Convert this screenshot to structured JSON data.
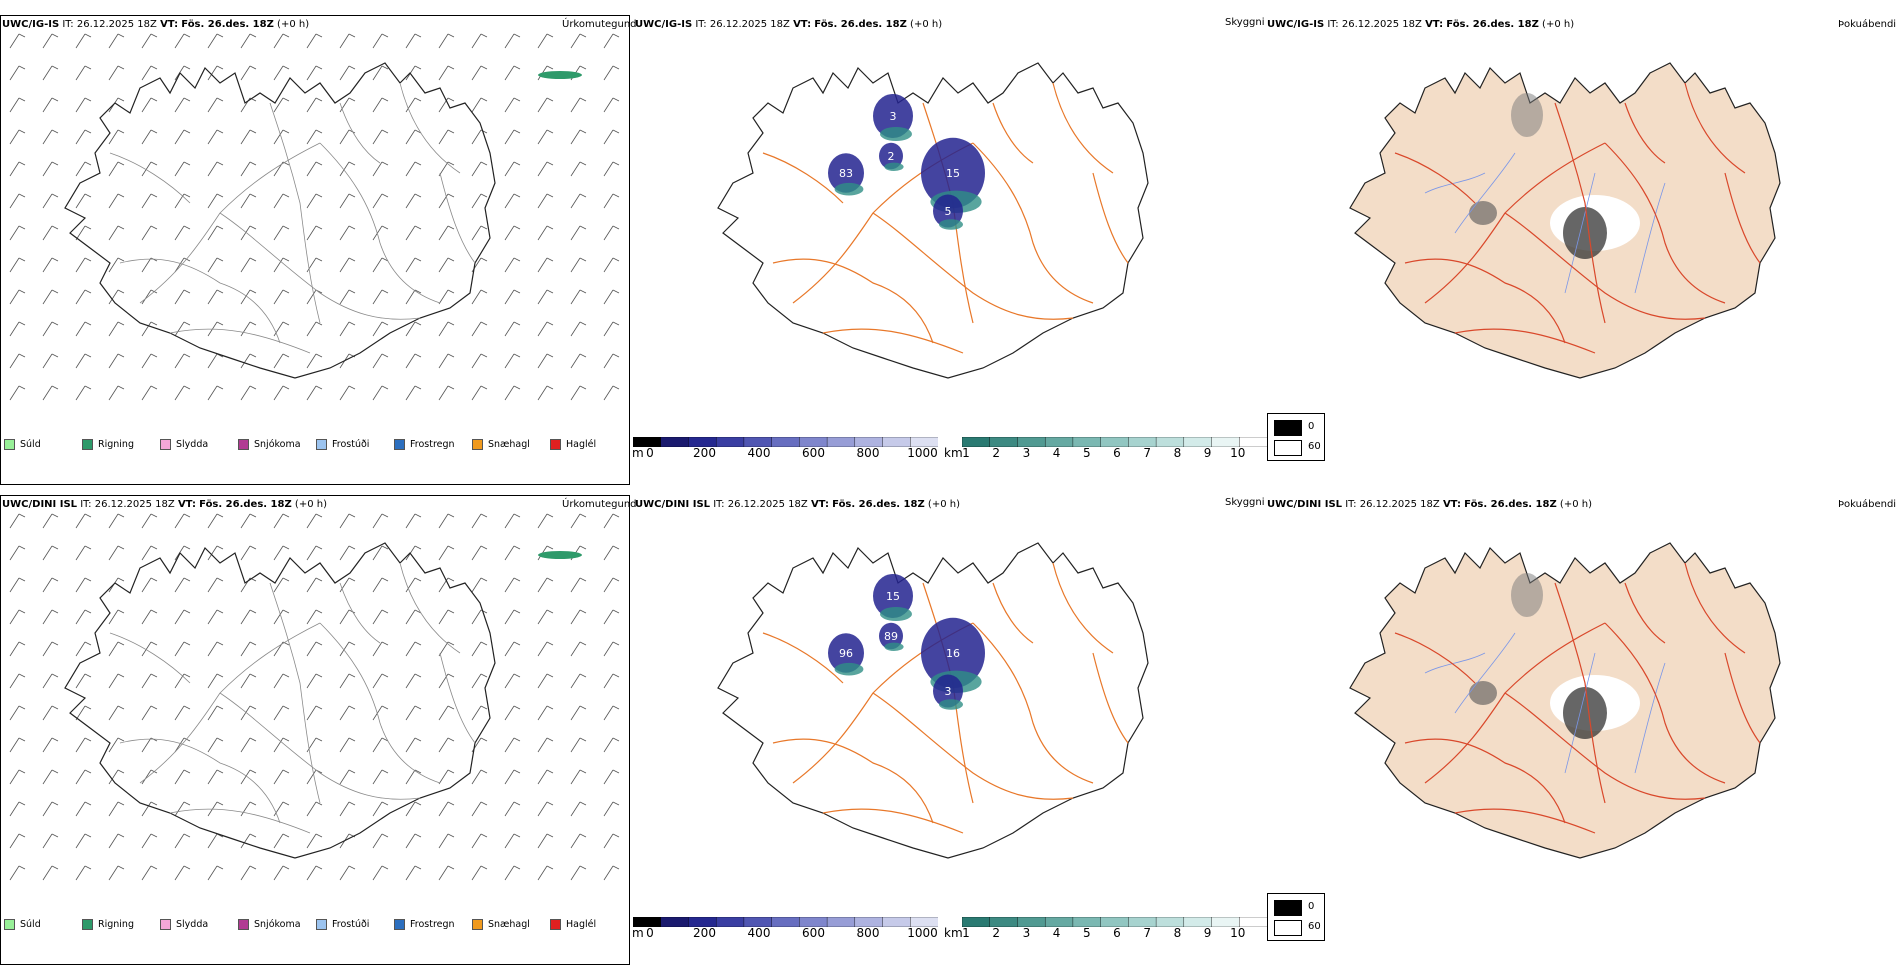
{
  "colors": {
    "island_fill": "#f3ddc8",
    "road": "#e8782a",
    "road_red": "#d9482b",
    "river": "#7a96e8",
    "coast": "#222222",
    "elevation": "#23238f",
    "visibility": "#2f8f86"
  },
  "legend_items": [
    {
      "label": "Súld",
      "color": "#98f098"
    },
    {
      "label": "Rigning",
      "color": "#2e9a6a"
    },
    {
      "label": "Slydda",
      "color": "#f4a6d8"
    },
    {
      "label": "Snjókoma",
      "color": "#b13b93"
    },
    {
      "label": "Frostúði",
      "color": "#9cc4f0"
    },
    {
      "label": "Frostregn",
      "color": "#2c6fbf"
    },
    {
      "label": "Snæhagl",
      "color": "#f09a1e"
    },
    {
      "label": "Haglél",
      "color": "#e12020"
    }
  ],
  "rows": [
    {
      "model": "UWC/IG-IS",
      "it_label": "IT:",
      "it_value": "26.12.2025 18Z",
      "vt_label": "VT:",
      "vt_value": "Fös. 26.des. 18Z",
      "lead": "(+0 h)",
      "titles": {
        "precip": "Úrkomutegund",
        "vis": "Skyggni",
        "fog": "Þokuábendi"
      },
      "labels": [
        "83",
        "2",
        "3",
        "15",
        "5"
      ]
    },
    {
      "model": "UWC/DINI ISL",
      "it_label": "IT:",
      "it_value": "26.12.2025 18Z",
      "vt_label": "VT:",
      "vt_value": "Fös. 26.des. 18Z",
      "lead": "(+0 h)",
      "titles": {
        "precip": "Úrkomutegund",
        "vis": "Skyggni",
        "fog": "Þokuábendi"
      },
      "labels": [
        "96",
        "89",
        "15",
        "16",
        "3"
      ]
    }
  ],
  "elev_bar": {
    "unit": "m",
    "ticks": [
      "0",
      "200",
      "400",
      "600",
      "800",
      "1000"
    ]
  },
  "vis_bar": {
    "unit": "km",
    "ticks": [
      "1",
      "2",
      "3",
      "4",
      "5",
      "6",
      "7",
      "8",
      "9",
      "10"
    ]
  },
  "fog_bar": {
    "ticks": [
      "0",
      "60"
    ]
  }
}
